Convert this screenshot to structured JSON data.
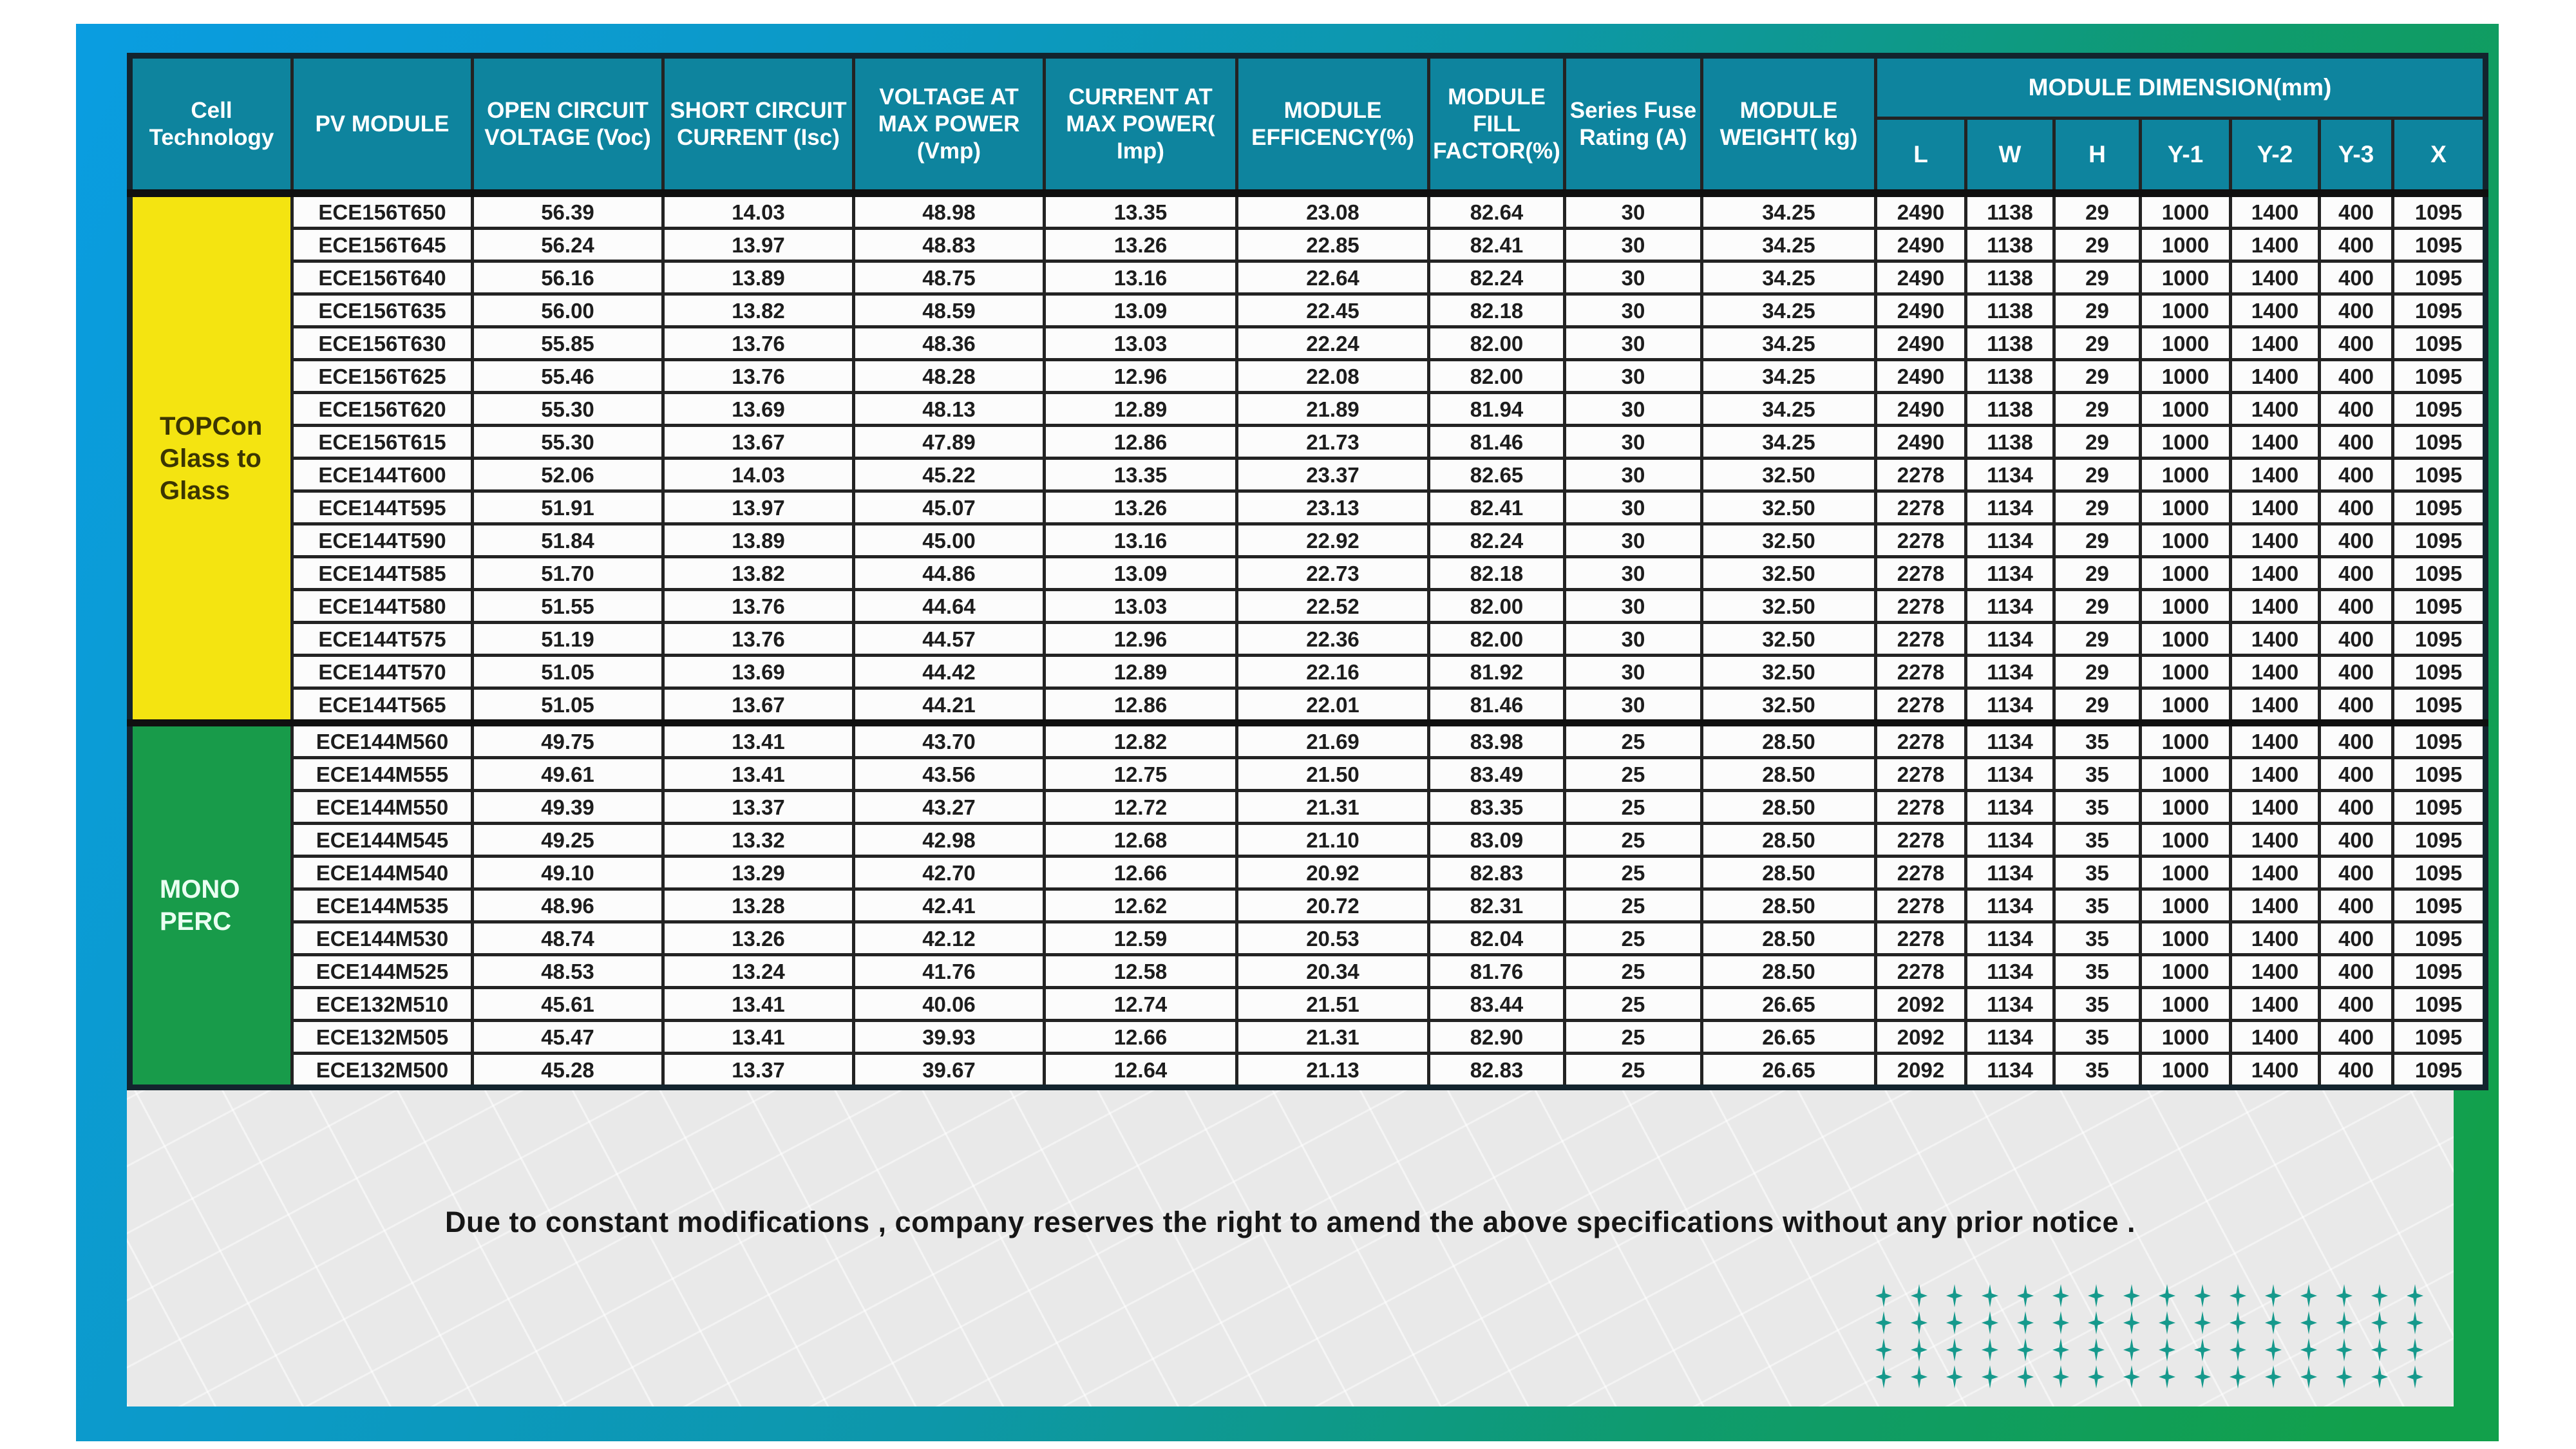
{
  "colors": {
    "frame_blue": "#0a9de1",
    "frame_teal": "#0d97a9",
    "frame_green": "#12a04b",
    "header_teal": "#0e849e",
    "topcon_yellow": "#f4e411",
    "mono_green": "#189b4a",
    "panel_gray": "#e9e9e9",
    "sparkle_teal": "#16998c"
  },
  "table": {
    "columns": [
      {
        "id": "cell_technology",
        "lines": [
          "Cell",
          "Technology"
        ]
      },
      {
        "id": "pv_module",
        "lines": [
          "PV MODULE"
        ]
      },
      {
        "id": "open_circuit_voltage",
        "lines": [
          "OPEN CIRCUIT",
          "VOLTAGE (Voc)"
        ]
      },
      {
        "id": "short_circuit_current",
        "lines": [
          "SHORT CIRCUIT",
          "CURRENT (Isc)"
        ]
      },
      {
        "id": "voltage_at_max_power",
        "lines": [
          "VOLTAGE AT",
          "MAX POWER",
          "(Vmp)"
        ]
      },
      {
        "id": "current_at_max_power",
        "lines": [
          "CURRENT AT",
          "MAX POWER(",
          "Imp)"
        ]
      },
      {
        "id": "module_efficiency",
        "lines": [
          "MODULE",
          "EFFICENCY(%)"
        ]
      },
      {
        "id": "module_fill_factor",
        "lines": [
          "MODULE",
          "FILL",
          "FACTOR(%)"
        ]
      },
      {
        "id": "series_fuse_rating",
        "lines": [
          "Series Fuse",
          "Rating (A)"
        ]
      },
      {
        "id": "module_weight",
        "lines": [
          "MODULE",
          "WEIGHT( kg)"
        ]
      }
    ],
    "dimension_group": {
      "title": "MODULE DIMENSION(mm)",
      "columns": [
        "L",
        "W",
        "H",
        "Y-1",
        "Y-2",
        "Y-3",
        "X"
      ]
    },
    "groups": [
      {
        "id": "topcon_glass_to_glass",
        "label_lines": [
          "TOPCon",
          "Glass to",
          "Glass"
        ],
        "rows": [
          [
            "ECE156T650",
            "56.39",
            "14.03",
            "48.98",
            "13.35",
            "23.08",
            "82.64",
            "30",
            "34.25",
            "2490",
            "1138",
            "29",
            "1000",
            "1400",
            "400",
            "1095"
          ],
          [
            "ECE156T645",
            "56.24",
            "13.97",
            "48.83",
            "13.26",
            "22.85",
            "82.41",
            "30",
            "34.25",
            "2490",
            "1138",
            "29",
            "1000",
            "1400",
            "400",
            "1095"
          ],
          [
            "ECE156T640",
            "56.16",
            "13.89",
            "48.75",
            "13.16",
            "22.64",
            "82.24",
            "30",
            "34.25",
            "2490",
            "1138",
            "29",
            "1000",
            "1400",
            "400",
            "1095"
          ],
          [
            "ECE156T635",
            "56.00",
            "13.82",
            "48.59",
            "13.09",
            "22.45",
            "82.18",
            "30",
            "34.25",
            "2490",
            "1138",
            "29",
            "1000",
            "1400",
            "400",
            "1095"
          ],
          [
            "ECE156T630",
            "55.85",
            "13.76",
            "48.36",
            "13.03",
            "22.24",
            "82.00",
            "30",
            "34.25",
            "2490",
            "1138",
            "29",
            "1000",
            "1400",
            "400",
            "1095"
          ],
          [
            "ECE156T625",
            "55.46",
            "13.76",
            "48.28",
            "12.96",
            "22.08",
            "82.00",
            "30",
            "34.25",
            "2490",
            "1138",
            "29",
            "1000",
            "1400",
            "400",
            "1095"
          ],
          [
            "ECE156T620",
            "55.30",
            "13.69",
            "48.13",
            "12.89",
            "21.89",
            "81.94",
            "30",
            "34.25",
            "2490",
            "1138",
            "29",
            "1000",
            "1400",
            "400",
            "1095"
          ],
          [
            "ECE156T615",
            "55.30",
            "13.67",
            "47.89",
            "12.86",
            "21.73",
            "81.46",
            "30",
            "34.25",
            "2490",
            "1138",
            "29",
            "1000",
            "1400",
            "400",
            "1095"
          ],
          [
            "ECE144T600",
            "52.06",
            "14.03",
            "45.22",
            "13.35",
            "23.37",
            "82.65",
            "30",
            "32.50",
            "2278",
            "1134",
            "29",
            "1000",
            "1400",
            "400",
            "1095"
          ],
          [
            "ECE144T595",
            "51.91",
            "13.97",
            "45.07",
            "13.26",
            "23.13",
            "82.41",
            "30",
            "32.50",
            "2278",
            "1134",
            "29",
            "1000",
            "1400",
            "400",
            "1095"
          ],
          [
            "ECE144T590",
            "51.84",
            "13.89",
            "45.00",
            "13.16",
            "22.92",
            "82.24",
            "30",
            "32.50",
            "2278",
            "1134",
            "29",
            "1000",
            "1400",
            "400",
            "1095"
          ],
          [
            "ECE144T585",
            "51.70",
            "13.82",
            "44.86",
            "13.09",
            "22.73",
            "82.18",
            "30",
            "32.50",
            "2278",
            "1134",
            "29",
            "1000",
            "1400",
            "400",
            "1095"
          ],
          [
            "ECE144T580",
            "51.55",
            "13.76",
            "44.64",
            "13.03",
            "22.52",
            "82.00",
            "30",
            "32.50",
            "2278",
            "1134",
            "29",
            "1000",
            "1400",
            "400",
            "1095"
          ],
          [
            "ECE144T575",
            "51.19",
            "13.76",
            "44.57",
            "12.96",
            "22.36",
            "82.00",
            "30",
            "32.50",
            "2278",
            "1134",
            "29",
            "1000",
            "1400",
            "400",
            "1095"
          ],
          [
            "ECE144T570",
            "51.05",
            "13.69",
            "44.42",
            "12.89",
            "22.16",
            "81.92",
            "30",
            "32.50",
            "2278",
            "1134",
            "29",
            "1000",
            "1400",
            "400",
            "1095"
          ],
          [
            "ECE144T565",
            "51.05",
            "13.67",
            "44.21",
            "12.86",
            "22.01",
            "81.46",
            "30",
            "32.50",
            "2278",
            "1134",
            "29",
            "1000",
            "1400",
            "400",
            "1095"
          ]
        ]
      },
      {
        "id": "mono_perc",
        "label_lines": [
          "MONO PERC"
        ],
        "rows": [
          [
            "ECE144M560",
            "49.75",
            "13.41",
            "43.70",
            "12.82",
            "21.69",
            "83.98",
            "25",
            "28.50",
            "2278",
            "1134",
            "35",
            "1000",
            "1400",
            "400",
            "1095"
          ],
          [
            "ECE144M555",
            "49.61",
            "13.41",
            "43.56",
            "12.75",
            "21.50",
            "83.49",
            "25",
            "28.50",
            "2278",
            "1134",
            "35",
            "1000",
            "1400",
            "400",
            "1095"
          ],
          [
            "ECE144M550",
            "49.39",
            "13.37",
            "43.27",
            "12.72",
            "21.31",
            "83.35",
            "25",
            "28.50",
            "2278",
            "1134",
            "35",
            "1000",
            "1400",
            "400",
            "1095"
          ],
          [
            "ECE144M545",
            "49.25",
            "13.32",
            "42.98",
            "12.68",
            "21.10",
            "83.09",
            "25",
            "28.50",
            "2278",
            "1134",
            "35",
            "1000",
            "1400",
            "400",
            "1095"
          ],
          [
            "ECE144M540",
            "49.10",
            "13.29",
            "42.70",
            "12.66",
            "20.92",
            "82.83",
            "25",
            "28.50",
            "2278",
            "1134",
            "35",
            "1000",
            "1400",
            "400",
            "1095"
          ],
          [
            "ECE144M535",
            "48.96",
            "13.28",
            "42.41",
            "12.62",
            "20.72",
            "82.31",
            "25",
            "28.50",
            "2278",
            "1134",
            "35",
            "1000",
            "1400",
            "400",
            "1095"
          ],
          [
            "ECE144M530",
            "48.74",
            "13.26",
            "42.12",
            "12.59",
            "20.53",
            "82.04",
            "25",
            "28.50",
            "2278",
            "1134",
            "35",
            "1000",
            "1400",
            "400",
            "1095"
          ],
          [
            "ECE144M525",
            "48.53",
            "13.24",
            "41.76",
            "12.58",
            "20.34",
            "81.76",
            "25",
            "28.50",
            "2278",
            "1134",
            "35",
            "1000",
            "1400",
            "400",
            "1095"
          ],
          [
            "ECE132M510",
            "45.61",
            "13.41",
            "40.06",
            "12.74",
            "21.51",
            "83.44",
            "25",
            "26.65",
            "2092",
            "1134",
            "35",
            "1000",
            "1400",
            "400",
            "1095"
          ],
          [
            "ECE132M505",
            "45.47",
            "13.41",
            "39.93",
            "12.66",
            "21.31",
            "82.90",
            "25",
            "26.65",
            "2092",
            "1134",
            "35",
            "1000",
            "1400",
            "400",
            "1095"
          ],
          [
            "ECE132M500",
            "45.28",
            "13.37",
            "39.67",
            "12.64",
            "21.13",
            "82.83",
            "25",
            "26.65",
            "2092",
            "1134",
            "35",
            "1000",
            "1400",
            "400",
            "1095"
          ]
        ]
      }
    ]
  },
  "footer": {
    "disclaimer": "Due to constant modifications , company reserves the right to amend the above specifications without any prior notice ."
  },
  "decor": {
    "sparkle_columns": 16,
    "sparkle_rows": 4
  }
}
